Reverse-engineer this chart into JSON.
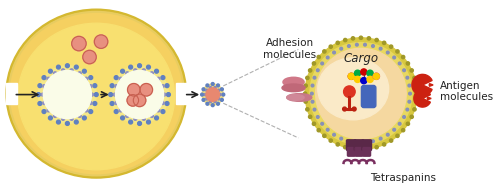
{
  "bg_color": "#ffffff",
  "cell_fill": "#f5d060",
  "cell_border": "#d4b830",
  "cell_inner_fill": "#f8e070",
  "endo_dot_color": "#6080c0",
  "endo_fill": "#f5e888",
  "endo_inner": "#fafae0",
  "sv_fill": "#e89080",
  "sv_border": "#c86050",
  "arrow_color": "#222222",
  "dash_color": "#b0b0b0",
  "exo_small_fill": "#e88870",
  "exo_small_dot": "#8090c0",
  "exo_large_outer": "#d8c850",
  "exo_large_mid": "#e8d870",
  "exo_large_dot1": "#b0a830",
  "exo_large_dot2": "#9090c0",
  "exo_large_inner": "#f5d8a0",
  "exo_large_highlight": "#faeac8",
  "cargo_color": "#333333",
  "dna_colors": [
    "#cc0000",
    "#ffcc00",
    "#00aa00",
    "#ffcc00",
    "#cc0000",
    "#ffcc00",
    "#0000cc",
    "#ffcc00",
    "#cc00cc"
  ],
  "dna_backbone": "#1144cc",
  "receptor_red": "#dd3322",
  "receptor_stem": "#bb2211",
  "pill_blue": "#4466bb",
  "tetra_color": "#7a3060",
  "tetra_feet": "#6a2855",
  "adh_top": "#d07888",
  "adh_mid": "#c06878",
  "adh_tongue": "#c87888",
  "ant_color": "#cc2211",
  "label_adhesion": "Adhesion\nmolecules",
  "label_antigen": "Antigen\nmolecules",
  "label_tetraspanins": "Tetraspanins",
  "label_cargo": "Cargo",
  "fs_label": 7.5,
  "fs_cargo": 8.5
}
